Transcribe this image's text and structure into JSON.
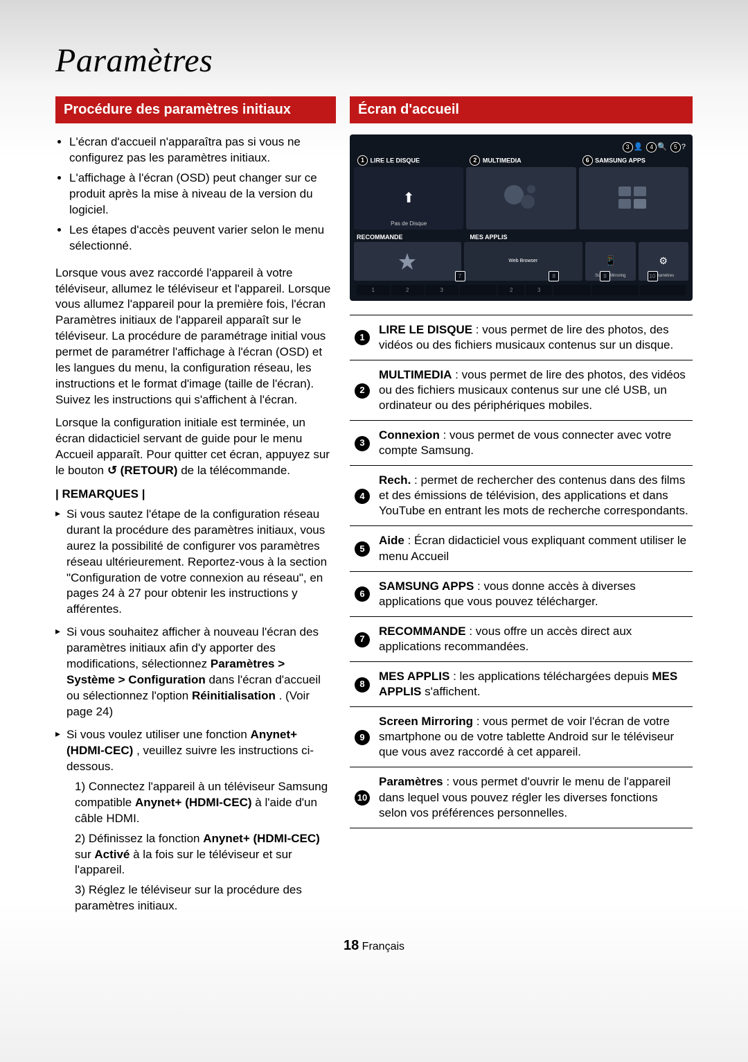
{
  "page": {
    "title": "Paramètres",
    "footer_page": "18",
    "footer_lang": "Français"
  },
  "left": {
    "header": "Procédure des paramètres initiaux",
    "bullets": [
      "L'écran d'accueil n'apparaîtra pas si vous ne configurez pas les paramètres initiaux.",
      "L'affichage à l'écran (OSD) peut changer sur ce produit après la mise à niveau de la version du logiciel.",
      "Les étapes d'accès peuvent varier selon le menu sélectionné."
    ],
    "para1": "Lorsque vous avez raccordé l'appareil à votre téléviseur, allumez le téléviseur et l'appareil. Lorsque vous allumez l'appareil pour la première fois, l'écran Paramètres initiaux de l'appareil apparaît sur le téléviseur. La procédure de paramétrage initial vous permet de paramétrer l'affichage à l'écran (OSD) et les langues du menu, la configuration réseau, les instructions et le format d'image (taille de l'écran). Suivez les instructions qui s'affichent à l'écran.",
    "para2_pre": "Lorsque la configuration initiale est terminée, un écran didacticiel servant de guide pour le menu Accueil apparaît. Pour quitter cet écran, appuyez sur le bouton ",
    "para2_btn": "(RETOUR)",
    "para2_post": " de la télécommande.",
    "remarques_label": "| REMARQUES |",
    "remarks": [
      "Si vous sautez l'étape de la configuration réseau durant la procédure des paramètres initiaux, vous aurez la possibilité de configurer vos paramètres réseau ultérieurement. Reportez-vous à la section \"Configuration de votre connexion au réseau\", en pages 24 à 27 pour obtenir les instructions y afférentes.",
      "",
      ""
    ],
    "remark2_pre": "Si vous souhaitez afficher à nouveau l'écran des paramètres initiaux afin d'y apporter des modifications, sélectionnez ",
    "remark2_bold1": "Paramètres > Système > Configuration",
    "remark2_mid": " dans l'écran d'accueil ou sélectionnez l'option ",
    "remark2_bold2": "Réinitialisation",
    "remark2_post": ". (Voir page 24)",
    "remark3_pre": "Si vous voulez utiliser une fonction ",
    "remark3_bold1": "Anynet+ (HDMI-CEC)",
    "remark3_mid": ", veuillez suivre les instructions ci-dessous.",
    "remark3_step1_pre": "1) Connectez l'appareil à un téléviseur Samsung compatible ",
    "remark3_step1_bold": "Anynet+ (HDMI-CEC)",
    "remark3_step1_post": " à l'aide d'un câble HDMI.",
    "remark3_step2_pre": "2) Définissez la fonction ",
    "remark3_step2_bold1": "Anynet+ (HDMI-CEC)",
    "remark3_step2_mid": " sur ",
    "remark3_step2_bold2": "Activé",
    "remark3_step2_post": " à la fois sur le téléviseur et sur l'appareil.",
    "remark3_step3": "3) Réglez le téléviseur sur la procédure des paramètres initiaux."
  },
  "right": {
    "header": "Écran d'accueil",
    "home_labels": {
      "t1": "LIRE LE DISQUE",
      "t2": "MULTIMEDIA",
      "t3": "SAMSUNG APPS",
      "nodisk": "Pas de Disque",
      "rec": "RECOMMANDE",
      "apps": "MES APPLIS",
      "mirror": "Screen Mirroring",
      "params": "Paramètres",
      "web": "Web Browser"
    },
    "legend": [
      {
        "n": "1",
        "bold": "LIRE LE DISQUE",
        "text": " : vous permet de lire des photos, des vidéos ou des fichiers musicaux contenus sur un disque."
      },
      {
        "n": "2",
        "bold": "MULTIMEDIA",
        "text": " : vous permet de lire des photos, des vidéos ou des fichiers musicaux contenus sur une clé USB, un ordinateur ou des périphériques mobiles."
      },
      {
        "n": "3",
        "bold": "Connexion",
        "text": " : vous permet de vous connecter avec votre compte Samsung."
      },
      {
        "n": "4",
        "bold": "Rech.",
        "text": " : permet de rechercher des contenus dans des films et des émissions de télévision, des applications et dans YouTube en entrant les mots de recherche correspondants."
      },
      {
        "n": "5",
        "bold": "Aide",
        "text": " : Écran didacticiel vous expliquant comment utiliser le menu Accueil"
      },
      {
        "n": "6",
        "bold": "SAMSUNG APPS",
        "text": " : vous donne accès à diverses applications que vous pouvez télécharger."
      },
      {
        "n": "7",
        "bold": "RECOMMANDE",
        "text": " : vous offre un accès direct aux applications recommandées."
      },
      {
        "n": "8",
        "bold": "MES APPLIS",
        "text_pre": " : les applications téléchargées depuis ",
        "bold2": "MES APPLIS",
        "text_post": " s'affichent."
      },
      {
        "n": "9",
        "bold": "Screen Mirroring",
        "text": " : vous permet de voir l'écran de votre smartphone ou de votre tablette Android sur le téléviseur que vous avez raccordé à cet appareil."
      },
      {
        "n": "10",
        "bold": "Paramètres",
        "text": " : vous permet d'ouvrir le menu de l'appareil dans lequel vous pouvez régler les diverses fonctions selon vos préférences personnelles."
      }
    ]
  }
}
